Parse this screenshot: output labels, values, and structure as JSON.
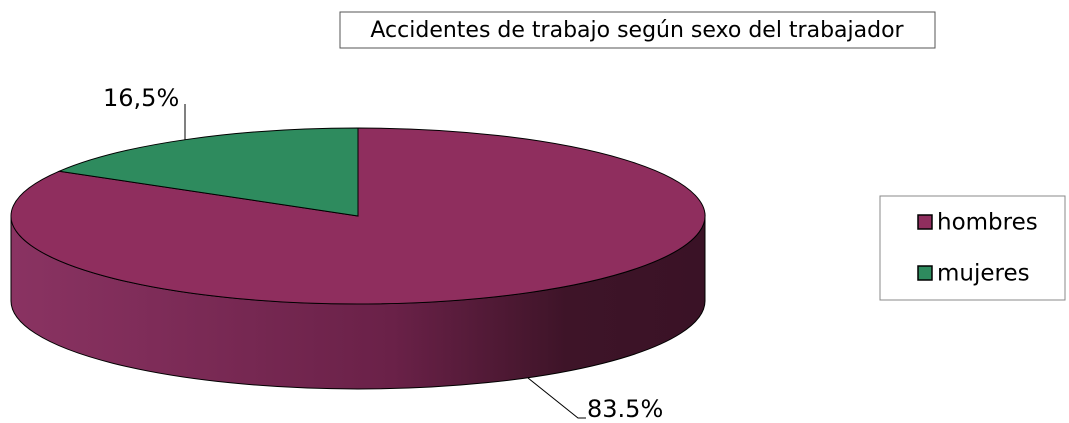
{
  "chart_data": {
    "type": "pie",
    "title": "Accidentes de trabajo según sexo del trabajador",
    "categories": [
      "hombres",
      "mujeres"
    ],
    "values": [
      83.5,
      16.5
    ],
    "value_labels": [
      "83.5%",
      "16,5%"
    ],
    "colors": [
      "#8f2e5e",
      "#2e8b5e"
    ],
    "legend": "right"
  }
}
